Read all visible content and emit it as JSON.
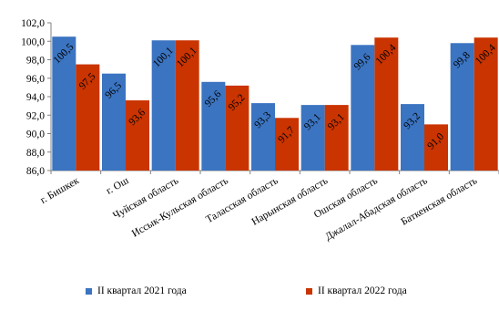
{
  "chart_data": {
    "type": "bar",
    "categories": [
      "г. Бишкек",
      "г. Ош",
      "Чуйская область",
      "Иссык-Кульская область",
      "Таласская область",
      "Нарынская область",
      "Ошская область",
      "Джалал-Абадская область",
      "Баткенская область"
    ],
    "series": [
      {
        "name": "II квартал 2021 года",
        "color": "#3B74C1",
        "values": [
          100.5,
          96.5,
          100.1,
          95.6,
          93.3,
          93.1,
          99.6,
          93.2,
          99.8
        ],
        "labels": [
          "100,5",
          "96,5",
          "100,1",
          "95,6",
          "93,3",
          "93,1",
          "99,6",
          "93,2",
          "99,8"
        ]
      },
      {
        "name": "II квартал 2022 года",
        "color": "#C93400",
        "values": [
          97.5,
          93.6,
          100.1,
          95.2,
          91.7,
          93.1,
          100.4,
          91.0,
          100.4
        ],
        "labels": [
          "97,5",
          "93,6",
          "100,1",
          "95,2",
          "91,7",
          "93,1",
          "100,4",
          "91,0",
          "100,4"
        ]
      }
    ],
    "ylim": [
      86.0,
      102.0
    ],
    "yticks": [
      86.0,
      88.0,
      90.0,
      92.0,
      94.0,
      96.0,
      98.0,
      100.0,
      102.0
    ],
    "ytick_labels": [
      "86,0",
      "88,0",
      "90,0",
      "92,0",
      "94,0",
      "96,0",
      "98,0",
      "100,0",
      "102,0"
    ],
    "grid": false,
    "legend_position": "bottom"
  },
  "legend": {
    "items": [
      {
        "label": "II квартал 2021 года",
        "color": "#3B74C1"
      },
      {
        "label": "II квартал 2022 года",
        "color": "#C93400"
      }
    ]
  }
}
